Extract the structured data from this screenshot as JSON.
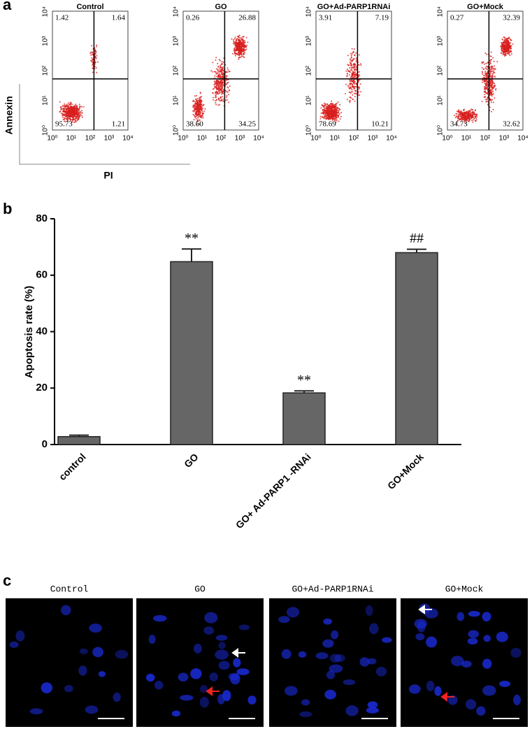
{
  "panel_labels": [
    "a",
    "b",
    "c"
  ],
  "flow": {
    "y_axis_title": "Annexin",
    "x_axis_title": "PI",
    "ticks": [
      "10⁰",
      "10¹",
      "10²",
      "10³",
      "10⁴"
    ],
    "panels": [
      {
        "title": "Control",
        "quadrants": [
          "1.42",
          "1.64",
          "95.73",
          "1.21"
        ]
      },
      {
        "title": "GO",
        "quadrants": [
          "0.26",
          "26.88",
          "38.60",
          "34.25"
        ]
      },
      {
        "title": "GO+Ad-PARP1RNAi",
        "quadrants": [
          "3.91",
          "7.19",
          "78.69",
          "10.21"
        ]
      },
      {
        "title": "GO+Mock",
        "quadrants": [
          "0.27",
          "32.39",
          "34.73",
          "32.62"
        ]
      }
    ]
  },
  "chart_data": {
    "type": "bar",
    "y_label": "Apoptosis rate (%)",
    "categories": [
      "control",
      "GO",
      "GO+ Ad-PARP1 -RNAi",
      "GO+Mock"
    ],
    "values": [
      2.8,
      64.8,
      18.3,
      68.0
    ],
    "errors": [
      0.5,
      4.5,
      0.7,
      1.2
    ],
    "annotations": [
      null,
      "**",
      "**",
      "##"
    ],
    "color": "#666666",
    "ylim": [
      0,
      80
    ],
    "yticks": [
      0,
      20,
      40,
      60,
      80
    ],
    "grid": false
  },
  "images": {
    "titles": [
      "Control",
      "GO",
      "GO+Ad-PARP1RNAi",
      "GO+Mock"
    ]
  }
}
